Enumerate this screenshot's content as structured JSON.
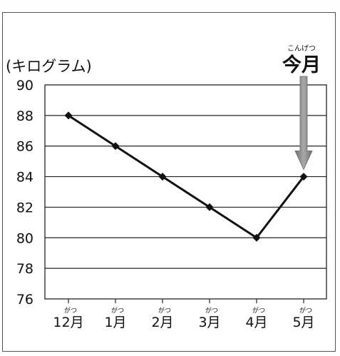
{
  "chart_data": {
    "type": "line",
    "ylabel": "(キログラム)",
    "ylim": [
      76,
      90
    ],
    "yticks": [
      76,
      78,
      80,
      82,
      84,
      86,
      88,
      90
    ],
    "categories": [
      "12月",
      "1月",
      "2月",
      "3月",
      "4月",
      "5月"
    ],
    "category_ruby": [
      "がつ",
      "がつ",
      "がつ",
      "がつ",
      "がつ",
      "がつ"
    ],
    "values": [
      88,
      86,
      84,
      82,
      80,
      84
    ],
    "grid": true,
    "annotation": {
      "text": "今月",
      "ruby": "こんげつ",
      "target_category": "5月"
    },
    "colors": {
      "line": "#111111",
      "arrow": "#8a8a8a",
      "grid": "#222222"
    }
  }
}
